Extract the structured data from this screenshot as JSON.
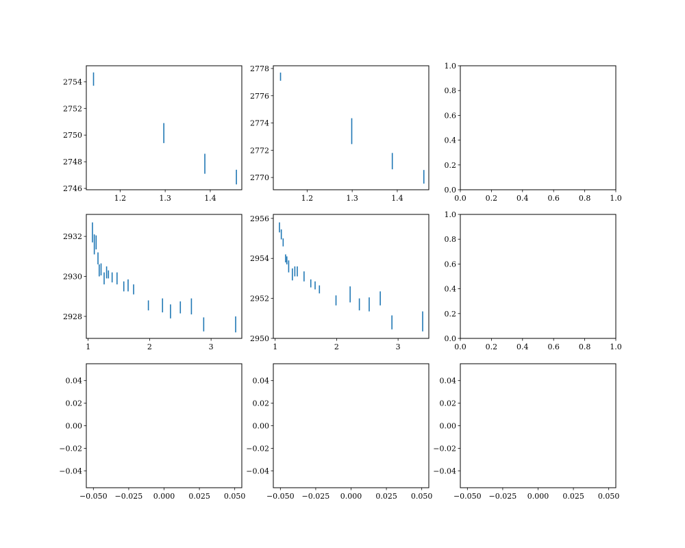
{
  "figure": {
    "title": "",
    "colors": {
      "errorbar": "#1f77b4",
      "axes": "#000000",
      "background": "#ffffff"
    }
  },
  "chart_data": [
    {
      "type": "errorbar",
      "panel": "row1-col1",
      "xlim": [
        1.125,
        1.47
      ],
      "ylim": [
        2745.9,
        2755.2
      ],
      "xticks": [
        1.2,
        1.3,
        1.4
      ],
      "xtick_labels": [
        "1.2",
        "1.3",
        "1.4"
      ],
      "yticks": [
        2746,
        2748,
        2750,
        2752,
        2754
      ],
      "ytick_labels": [
        "2746",
        "2748",
        "2750",
        "2752",
        "2754"
      ],
      "points": [
        {
          "x": 1.141,
          "y": 2754.2,
          "err": 0.5
        },
        {
          "x": 1.297,
          "y": 2750.15,
          "err": 0.75
        },
        {
          "x": 1.388,
          "y": 2747.85,
          "err": 0.75
        },
        {
          "x": 1.458,
          "y": 2746.85,
          "err": 0.55
        }
      ]
    },
    {
      "type": "errorbar",
      "panel": "row1-col2",
      "xlim": [
        1.125,
        1.47
      ],
      "ylim": [
        2769.1,
        2778.2
      ],
      "xticks": [
        1.2,
        1.3,
        1.4
      ],
      "xtick_labels": [
        "1.2",
        "1.3",
        "1.4"
      ],
      "yticks": [
        2770,
        2772,
        2774,
        2776,
        2778
      ],
      "ytick_labels": [
        "2770",
        "2772",
        "2774",
        "2776",
        "2778"
      ],
      "points": [
        {
          "x": 1.141,
          "y": 2777.4,
          "err": 0.3
        },
        {
          "x": 1.299,
          "y": 2773.4,
          "err": 0.95
        },
        {
          "x": 1.389,
          "y": 2771.2,
          "err": 0.6
        },
        {
          "x": 1.459,
          "y": 2770.05,
          "err": 0.5
        }
      ]
    },
    {
      "type": "empty",
      "panel": "row1-col3",
      "xlim": [
        0,
        1
      ],
      "ylim": [
        0,
        1
      ],
      "xticks": [
        0,
        0.2,
        0.4,
        0.6,
        0.8,
        1.0
      ],
      "xtick_labels": [
        "0.0",
        "0.2",
        "0.4",
        "0.6",
        "0.8",
        "1.0"
      ],
      "yticks": [
        0,
        0.2,
        0.4,
        0.6,
        0.8,
        1.0
      ],
      "ytick_labels": [
        "0.0",
        "0.2",
        "0.4",
        "0.6",
        "0.8",
        "1.0"
      ],
      "points": []
    },
    {
      "type": "errorbar",
      "panel": "row2-col1",
      "xlim": [
        0.97,
        3.5
      ],
      "ylim": [
        2926.9,
        2933.1
      ],
      "xticks": [
        1,
        2,
        3
      ],
      "xtick_labels": [
        "1",
        "2",
        "3"
      ],
      "yticks": [
        2928,
        2930,
        2932
      ],
      "ytick_labels": [
        "2928",
        "2930",
        "2932"
      ],
      "points": [
        {
          "x": 1.07,
          "y": 2932.2,
          "err": 0.5
        },
        {
          "x": 1.1,
          "y": 2931.6,
          "err": 0.5
        },
        {
          "x": 1.13,
          "y": 2931.7,
          "err": 0.35
        },
        {
          "x": 1.16,
          "y": 2930.9,
          "err": 0.3
        },
        {
          "x": 1.18,
          "y": 2930.3,
          "err": 0.3
        },
        {
          "x": 1.21,
          "y": 2930.35,
          "err": 0.3
        },
        {
          "x": 1.26,
          "y": 2929.9,
          "err": 0.3
        },
        {
          "x": 1.3,
          "y": 2930.2,
          "err": 0.3
        },
        {
          "x": 1.33,
          "y": 2930.1,
          "err": 0.2
        },
        {
          "x": 1.39,
          "y": 2929.95,
          "err": 0.25
        },
        {
          "x": 1.47,
          "y": 2929.9,
          "err": 0.3
        },
        {
          "x": 1.58,
          "y": 2929.5,
          "err": 0.25
        },
        {
          "x": 1.65,
          "y": 2929.55,
          "err": 0.3
        },
        {
          "x": 1.74,
          "y": 2929.35,
          "err": 0.25
        },
        {
          "x": 1.98,
          "y": 2928.55,
          "err": 0.25
        },
        {
          "x": 2.21,
          "y": 2928.55,
          "err": 0.35
        },
        {
          "x": 2.34,
          "y": 2928.25,
          "err": 0.35
        },
        {
          "x": 2.5,
          "y": 2928.45,
          "err": 0.3
        },
        {
          "x": 2.68,
          "y": 2928.5,
          "err": 0.4
        },
        {
          "x": 2.88,
          "y": 2927.6,
          "err": 0.35
        },
        {
          "x": 3.4,
          "y": 2927.6,
          "err": 0.4
        }
      ]
    },
    {
      "type": "errorbar",
      "panel": "row2-col2",
      "xlim": [
        0.97,
        3.5
      ],
      "ylim": [
        2950.0,
        2956.2
      ],
      "xticks": [
        1,
        2,
        3
      ],
      "xtick_labels": [
        "1",
        "2",
        "3"
      ],
      "yticks": [
        2950,
        2952,
        2954,
        2956
      ],
      "ytick_labels": [
        "2950",
        "2952",
        "2954",
        "2956"
      ],
      "points": [
        {
          "x": 1.07,
          "y": 2955.55,
          "err": 0.25
        },
        {
          "x": 1.1,
          "y": 2955.2,
          "err": 0.25
        },
        {
          "x": 1.13,
          "y": 2954.8,
          "err": 0.2
        },
        {
          "x": 1.17,
          "y": 2954.0,
          "err": 0.2
        },
        {
          "x": 1.19,
          "y": 2953.9,
          "err": 0.2
        },
        {
          "x": 1.22,
          "y": 2953.6,
          "err": 0.3
        },
        {
          "x": 1.28,
          "y": 2953.2,
          "err": 0.3
        },
        {
          "x": 1.32,
          "y": 2953.35,
          "err": 0.25
        },
        {
          "x": 1.36,
          "y": 2953.35,
          "err": 0.25
        },
        {
          "x": 1.47,
          "y": 2953.1,
          "err": 0.25
        },
        {
          "x": 1.58,
          "y": 2952.75,
          "err": 0.2
        },
        {
          "x": 1.65,
          "y": 2952.65,
          "err": 0.2
        },
        {
          "x": 1.72,
          "y": 2952.45,
          "err": 0.2
        },
        {
          "x": 1.99,
          "y": 2951.9,
          "err": 0.25
        },
        {
          "x": 2.22,
          "y": 2952.2,
          "err": 0.4
        },
        {
          "x": 2.37,
          "y": 2951.7,
          "err": 0.3
        },
        {
          "x": 2.53,
          "y": 2951.7,
          "err": 0.35
        },
        {
          "x": 2.71,
          "y": 2952.0,
          "err": 0.35
        },
        {
          "x": 2.9,
          "y": 2950.8,
          "err": 0.35
        },
        {
          "x": 3.4,
          "y": 2950.85,
          "err": 0.5
        }
      ]
    },
    {
      "type": "empty",
      "panel": "row2-col3",
      "xlim": [
        0,
        1
      ],
      "ylim": [
        0,
        1
      ],
      "xticks": [
        0,
        0.2,
        0.4,
        0.6,
        0.8,
        1.0
      ],
      "xtick_labels": [
        "0.0",
        "0.2",
        "0.4",
        "0.6",
        "0.8",
        "1.0"
      ],
      "yticks": [
        0,
        0.2,
        0.4,
        0.6,
        0.8,
        1.0
      ],
      "ytick_labels": [
        "0.0",
        "0.2",
        "0.4",
        "0.6",
        "0.8",
        "1.0"
      ],
      "points": []
    },
    {
      "type": "empty",
      "panel": "row3-col1",
      "xlim": [
        -0.055,
        0.055
      ],
      "ylim": [
        -0.055,
        0.055
      ],
      "xticks": [
        -0.05,
        -0.025,
        0,
        0.025,
        0.05
      ],
      "xtick_labels": [
        "−0.050",
        "−0.025",
        "0.000",
        "0.025",
        "0.050"
      ],
      "yticks": [
        -0.04,
        -0.02,
        0,
        0.02,
        0.04
      ],
      "ytick_labels": [
        "−0.04",
        "−0.02",
        "0.00",
        "0.02",
        "0.04"
      ],
      "points": []
    },
    {
      "type": "empty",
      "panel": "row3-col2",
      "xlim": [
        -0.055,
        0.055
      ],
      "ylim": [
        -0.055,
        0.055
      ],
      "xticks": [
        -0.05,
        -0.025,
        0,
        0.025,
        0.05
      ],
      "xtick_labels": [
        "−0.050",
        "−0.025",
        "0.000",
        "0.025",
        "0.050"
      ],
      "yticks": [
        -0.04,
        -0.02,
        0,
        0.02,
        0.04
      ],
      "ytick_labels": [
        "−0.04",
        "−0.02",
        "0.00",
        "0.02",
        "0.04"
      ],
      "points": []
    },
    {
      "type": "empty",
      "panel": "row3-col3",
      "xlim": [
        -0.055,
        0.055
      ],
      "ylim": [
        -0.055,
        0.055
      ],
      "xticks": [
        -0.05,
        -0.025,
        0,
        0.025,
        0.05
      ],
      "xtick_labels": [
        "−0.050",
        "−0.025",
        "0.000",
        "0.025",
        "0.050"
      ],
      "yticks": [
        -0.04,
        -0.02,
        0,
        0.02,
        0.04
      ],
      "ytick_labels": [
        "−0.04",
        "−0.02",
        "0.00",
        "0.02",
        "0.04"
      ],
      "points": []
    }
  ]
}
